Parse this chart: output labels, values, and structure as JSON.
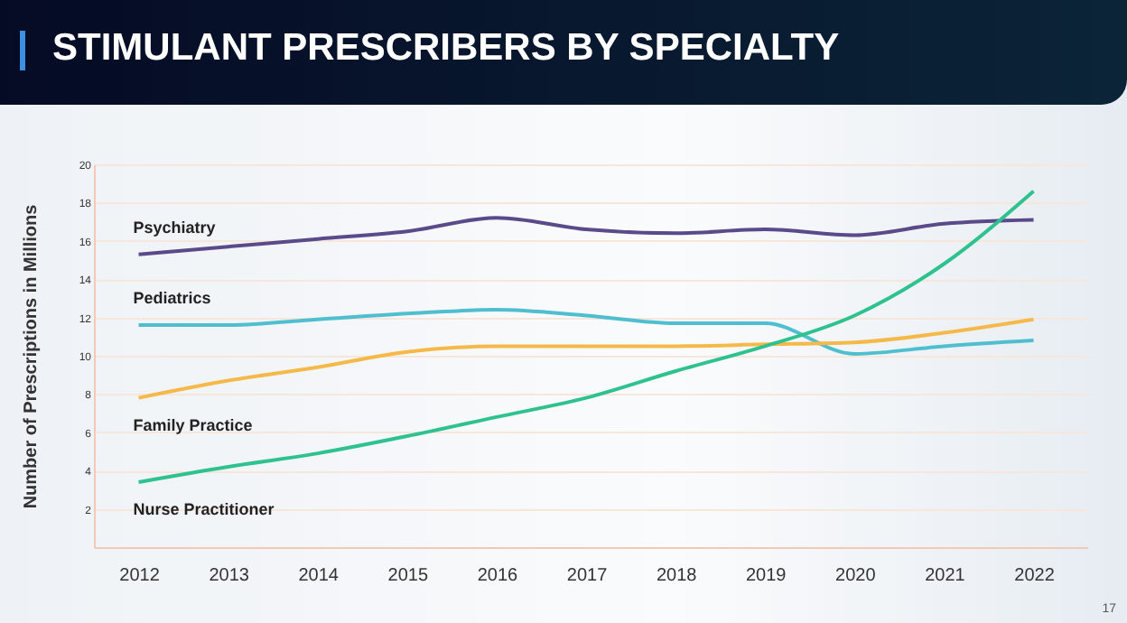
{
  "chart_data": {
    "type": "line",
    "title": "STIMULANT PRESCRIBERS BY SPECIALTY",
    "ylabel": "Number of Prescriptions in Millions",
    "x": [
      2012,
      2013,
      2014,
      2015,
      2016,
      2017,
      2018,
      2019,
      2020,
      2021,
      2022
    ],
    "series": [
      {
        "name": "Psychiatry",
        "color": "#5b4a8a",
        "values": [
          15.3,
          15.7,
          16.1,
          16.5,
          17.2,
          16.6,
          16.4,
          16.6,
          16.3,
          16.9,
          17.1
        ]
      },
      {
        "name": "Pediatrics",
        "color": "#4fbfcf",
        "values": [
          11.6,
          11.6,
          11.9,
          12.2,
          12.4,
          12.1,
          11.7,
          11.7,
          10.1,
          10.5,
          10.8
        ]
      },
      {
        "name": "Family Practice",
        "color": "#f5b94a",
        "values": [
          7.8,
          8.7,
          9.4,
          10.2,
          10.5,
          10.5,
          10.5,
          10.6,
          10.7,
          11.2,
          11.9
        ]
      },
      {
        "name": "Nurse Practitioner",
        "color": "#2fc28f",
        "values": [
          3.4,
          4.2,
          4.9,
          5.8,
          6.8,
          7.8,
          9.2,
          10.5,
          12.1,
          14.8,
          18.6
        ]
      }
    ],
    "xlim": [
      2011.5,
      2022.6
    ],
    "xticks": [
      2012,
      2013,
      2014,
      2015,
      2016,
      2017,
      2018,
      2019,
      2020,
      2021,
      2022
    ],
    "ylim": [
      0,
      20
    ],
    "yticks": [
      2,
      4,
      6,
      8,
      10,
      12,
      14,
      16,
      18,
      20
    ],
    "grid": "y",
    "legend": false,
    "annotations": [
      "17"
    ]
  }
}
